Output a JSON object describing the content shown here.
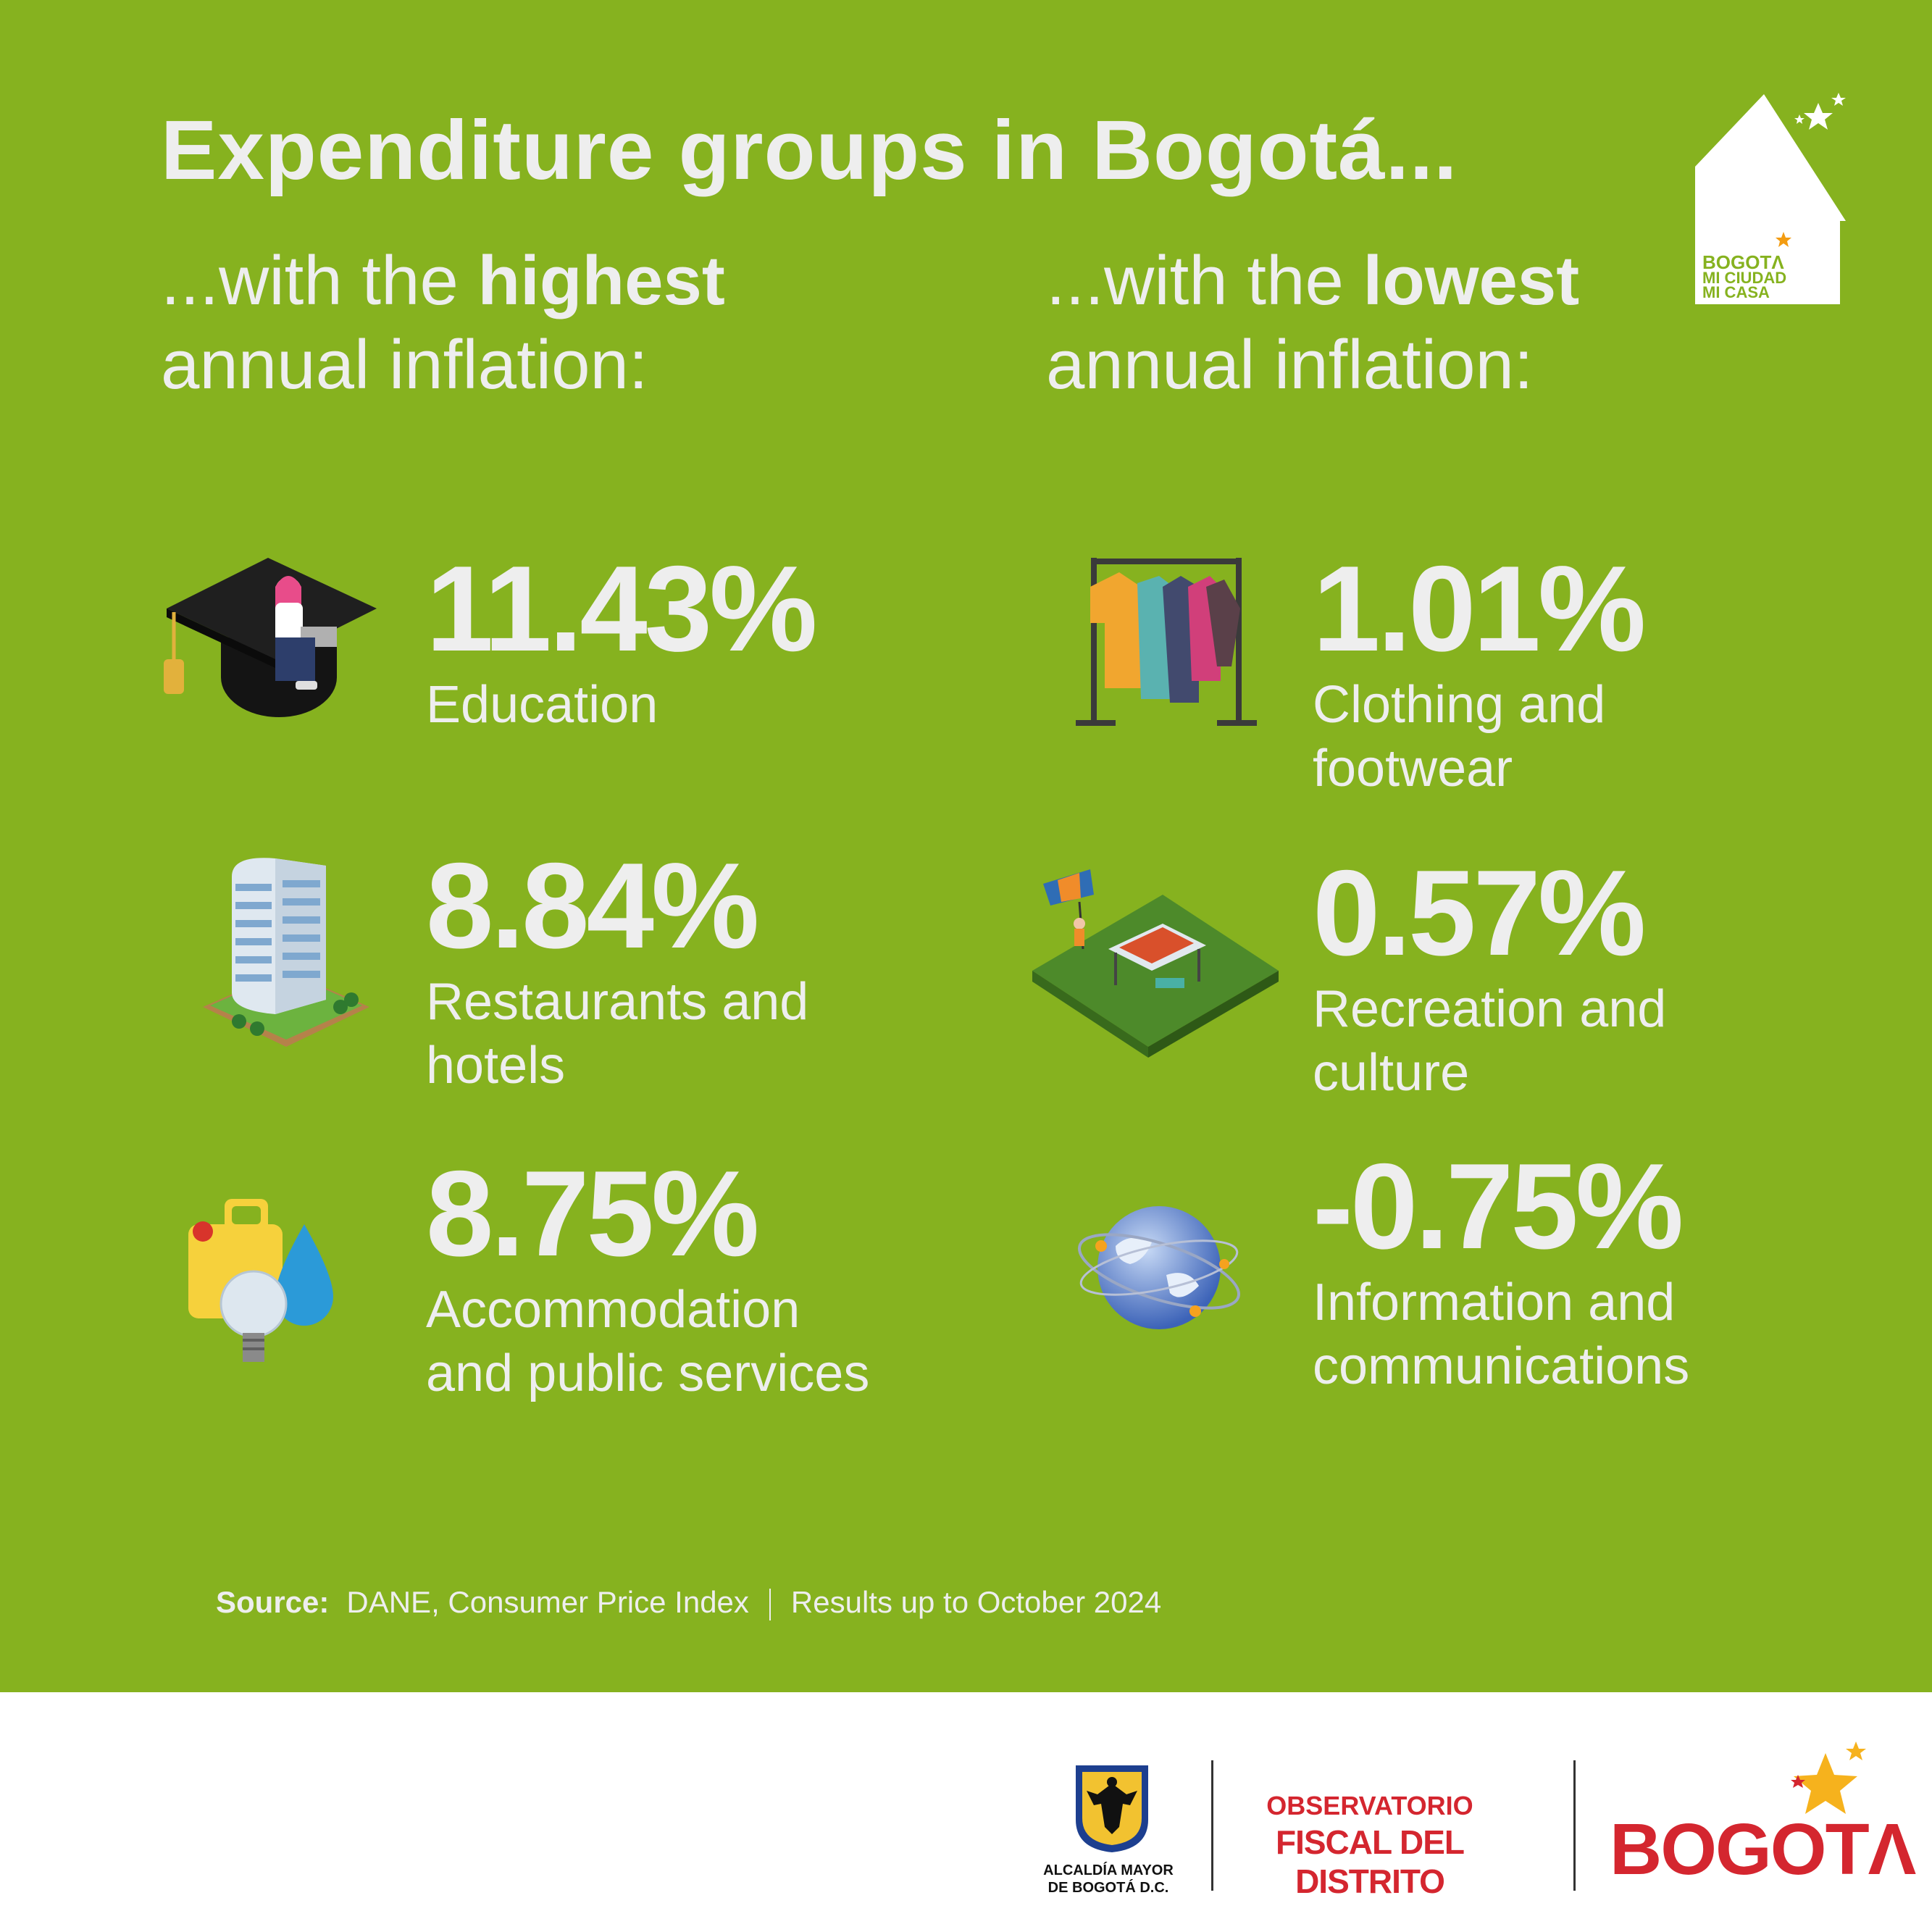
{
  "title": "Expenditure groups in Bogotá...",
  "highest": {
    "prefix": "...with the ",
    "emphasis": "highest",
    "line2": "annual inflation:",
    "items": [
      {
        "value": "11.43%",
        "label_lines": [
          "Education"
        ],
        "icon": "graduation-cap-icon"
      },
      {
        "value": "8.84%",
        "label_lines": [
          "Restaurants and",
          "hotels"
        ],
        "icon": "hotel-building-icon"
      },
      {
        "value": "8.75%",
        "label_lines": [
          "Accommodation",
          "and public services"
        ],
        "icon": "utilities-icon"
      }
    ]
  },
  "lowest": {
    "prefix": "...with the ",
    "emphasis": "lowest",
    "line2": "annual inflation:",
    "items": [
      {
        "value": "1.01%",
        "label_lines": [
          "Clothing and",
          "footwear"
        ],
        "icon": "clothes-rack-icon"
      },
      {
        "value": "0.57%",
        "label_lines": [
          "Recreation and",
          "culture"
        ],
        "icon": "park-picnic-icon"
      },
      {
        "value": "-0.75%",
        "label_lines": [
          "Information and",
          "communications"
        ],
        "icon": "globe-network-icon"
      }
    ]
  },
  "source": {
    "label": "Source:",
    "text": "DANE, Consumer Price Index",
    "results": "Results up to October 2024"
  },
  "house_logo": {
    "line1": "BOGOTΛ",
    "line2": "MI CIUDAD",
    "line3": "MI CASA"
  },
  "footer": {
    "alcaldia_line1": "ALCALDÍA MAYOR",
    "alcaldia_line2": "DE BOGOTÁ D.C.",
    "observatorio_line1": "OBSERVATORIO",
    "observatorio_line2": "FISCAL DEL DISTRITO",
    "bogota": "BOGOTΛ"
  },
  "colors": {
    "background": "#86b21f",
    "text": "#eeeeee",
    "brand_red": "#d4262f"
  }
}
